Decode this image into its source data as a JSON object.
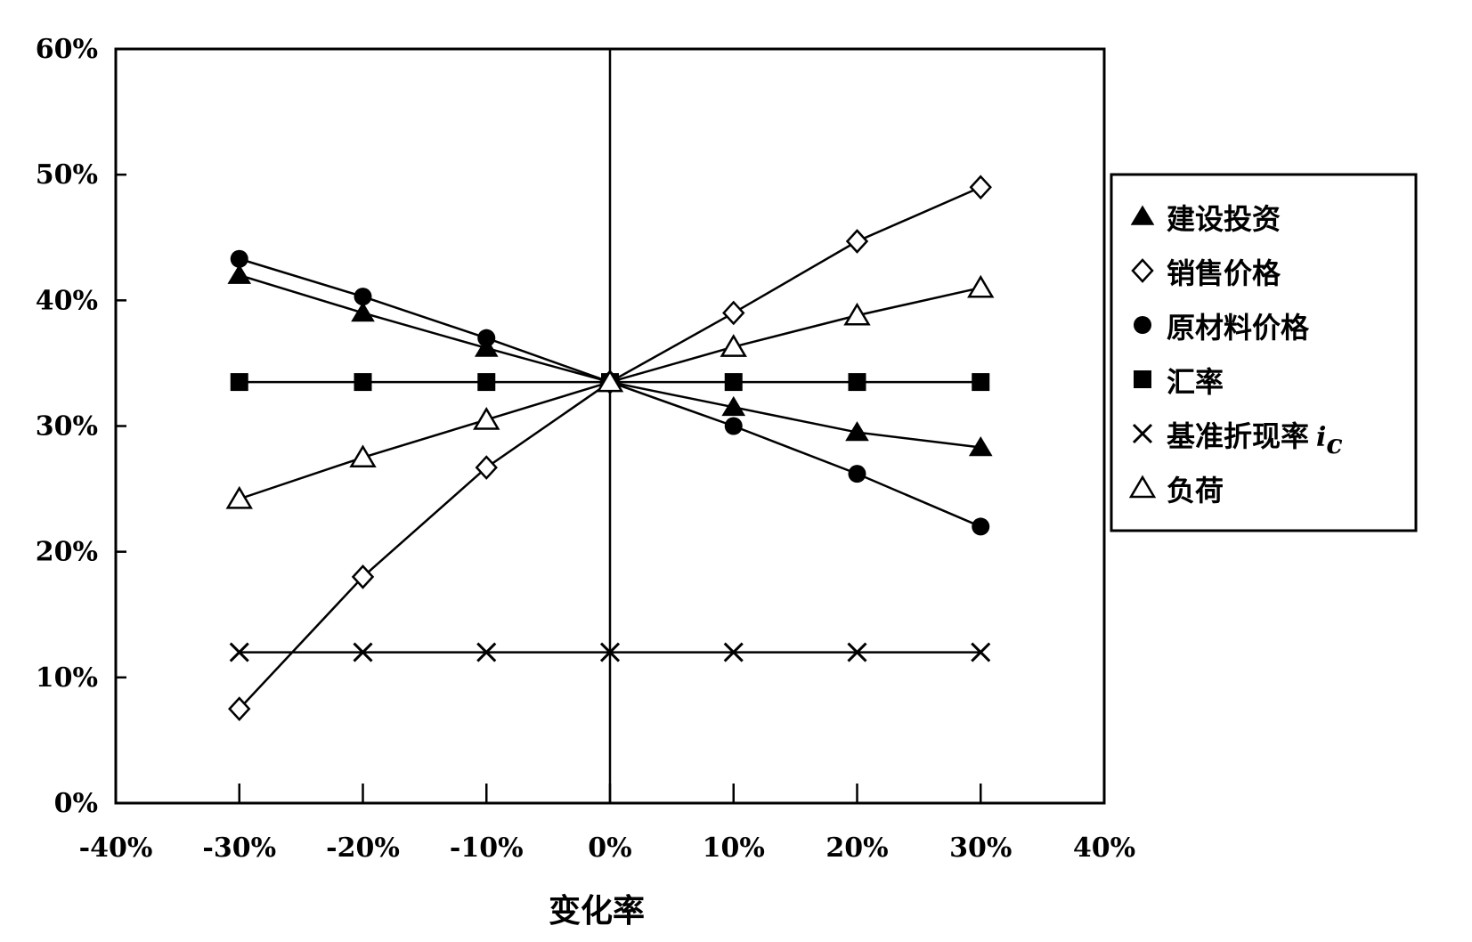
{
  "chart_data": {
    "type": "line",
    "xlabel": "变化率",
    "ylabel": "",
    "title": "",
    "xlim": [
      -40,
      40
    ],
    "ylim": [
      0,
      60
    ],
    "x_ticks": [
      "-40%",
      "-30%",
      "-20%",
      "-10%",
      "0%",
      "10%",
      "20%",
      "30%",
      "40%"
    ],
    "y_ticks": [
      "0%",
      "10%",
      "20%",
      "30%",
      "40%",
      "50%",
      "60%"
    ],
    "x": [
      -30,
      -20,
      -10,
      0,
      10,
      20,
      30
    ],
    "grid": false,
    "legend_position": "right",
    "series": [
      {
        "name": "建设投资",
        "marker": "triangle-filled",
        "values": [
          42,
          39,
          36.2,
          33.5,
          31.5,
          29.5,
          28.3
        ]
      },
      {
        "name": "销售价格",
        "marker": "diamond-open",
        "values": [
          7.5,
          18,
          26.7,
          33.5,
          39,
          44.7,
          49
        ]
      },
      {
        "name": "原材料价格",
        "marker": "circle-filled",
        "values": [
          43.3,
          40.3,
          37,
          33.5,
          30,
          26.2,
          22
        ]
      },
      {
        "name": "汇率",
        "marker": "square-filled",
        "values": [
          33.5,
          33.5,
          33.5,
          33.5,
          33.5,
          33.5,
          33.5
        ]
      },
      {
        "name": "基准折现率",
        "name_subscript": "i",
        "name_subscript_sub": "c",
        "marker": "cross",
        "values": [
          12,
          12,
          12,
          12,
          12,
          12,
          12
        ]
      },
      {
        "name": "负荷",
        "marker": "triangle-open",
        "values": [
          24.2,
          27.5,
          30.5,
          33.5,
          36.3,
          38.8,
          41
        ]
      }
    ]
  }
}
